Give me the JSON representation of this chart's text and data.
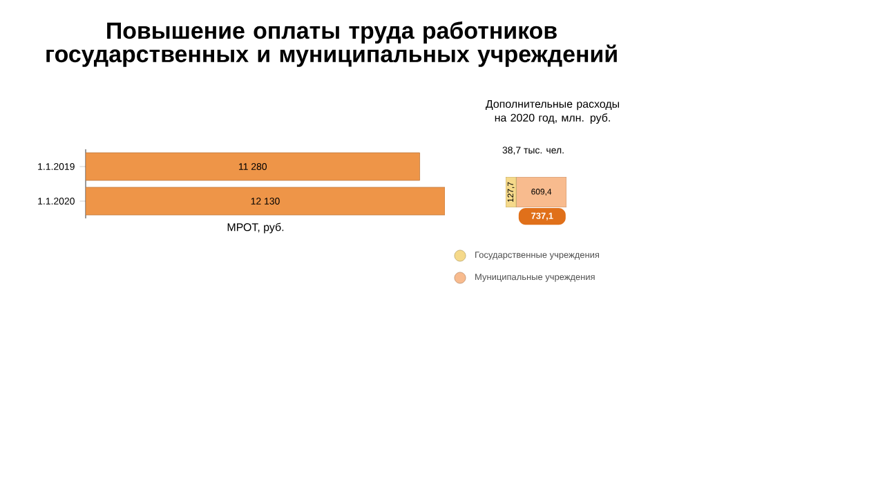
{
  "chart_data": [
    {
      "type": "bar",
      "orientation": "horizontal",
      "title": "Повышение оплаты труда работников государственных и муниципальных учреждений",
      "xlabel": "МРОТ, руб.",
      "categories": [
        "1.1.2019",
        "1.1.2020"
      ],
      "values": [
        11280,
        12130
      ],
      "value_labels": [
        "11 280",
        "12 130"
      ],
      "color": "#ee9548"
    },
    {
      "type": "bar",
      "orientation": "horizontal",
      "stacked": true,
      "title": "Дополнительные расходы на 2020 год, млн. руб.",
      "categories": [
        null
      ],
      "tick_labels": false,
      "legend": "bottom",
      "series": [
        {
          "name": "Государственные учреждения",
          "color": "#f5d98a",
          "values": [
            127.7
          ],
          "value_labels": [
            "127,7"
          ]
        },
        {
          "name": "Муниципальные учреждения",
          "color": "#f8bb8e",
          "values": [
            609.4
          ],
          "value_labels": [
            "609,4"
          ]
        }
      ],
      "totals": [
        "737,1"
      ],
      "annotations": [
        "38,7 тыс. чел."
      ]
    }
  ]
}
